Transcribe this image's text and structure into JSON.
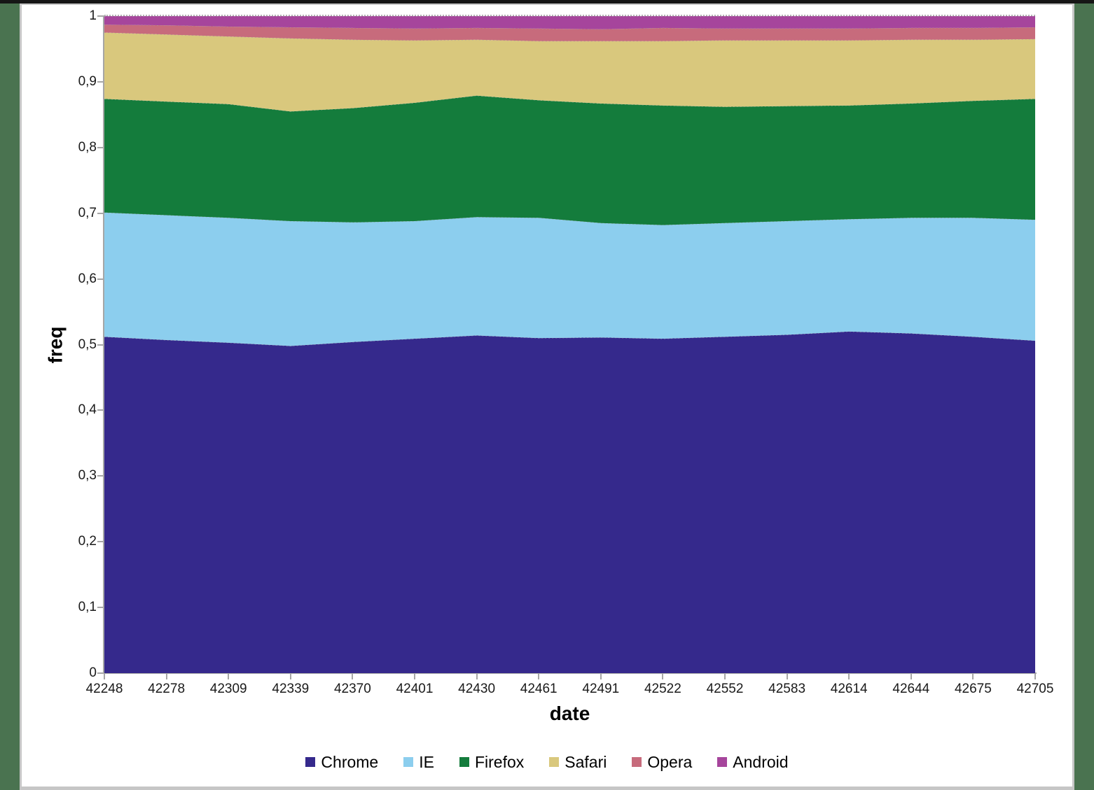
{
  "window": {
    "frame_color": "#4a7350",
    "frame_top_color": "#161616",
    "frame_inner_line_color": "#c6c6c6",
    "background": "#ffffff"
  },
  "chart_data": {
    "type": "area",
    "stacked": true,
    "normalized": true,
    "xlabel": "date",
    "ylabel": "freq",
    "ylim": [
      0,
      1
    ],
    "grid": "top-gridline-only",
    "legend_position": "bottom",
    "decimal_separator": ",",
    "x": [
      42248,
      42278,
      42309,
      42339,
      42370,
      42401,
      42430,
      42461,
      42491,
      42522,
      42552,
      42583,
      42614,
      42644,
      42675,
      42705
    ],
    "x_tick_labels": [
      "42248",
      "42278",
      "42309",
      "42339",
      "42370",
      "42401",
      "42430",
      "42461",
      "42491",
      "42522",
      "42552",
      "42583",
      "42614",
      "42644",
      "42675",
      "42705"
    ],
    "y_tick_labels": [
      "0",
      "0,1",
      "0,2",
      "0,3",
      "0,4",
      "0,5",
      "0,6",
      "0,7",
      "0,8",
      "0,9",
      "1"
    ],
    "y_tick_values": [
      0,
      0.1,
      0.2,
      0.3,
      0.4,
      0.5,
      0.6,
      0.7,
      0.8,
      0.9,
      1
    ],
    "series": [
      {
        "name": "Chrome",
        "color": "#35298c",
        "values": [
          0.512,
          0.507,
          0.503,
          0.498,
          0.504,
          0.509,
          0.514,
          0.51,
          0.511,
          0.509,
          0.512,
          0.515,
          0.52,
          0.517,
          0.512,
          0.506
        ]
      },
      {
        "name": "IE",
        "color": "#8cceee",
        "values": [
          0.189,
          0.19,
          0.19,
          0.19,
          0.182,
          0.179,
          0.18,
          0.183,
          0.174,
          0.173,
          0.173,
          0.173,
          0.171,
          0.176,
          0.181,
          0.184
        ]
      },
      {
        "name": "Firefox",
        "color": "#147c3c",
        "values": [
          0.173,
          0.173,
          0.173,
          0.167,
          0.174,
          0.18,
          0.185,
          0.179,
          0.182,
          0.182,
          0.177,
          0.175,
          0.173,
          0.174,
          0.178,
          0.184
        ]
      },
      {
        "name": "Safari",
        "color": "#d9c87d",
        "values": [
          0.101,
          0.102,
          0.103,
          0.111,
          0.104,
          0.095,
          0.085,
          0.09,
          0.095,
          0.098,
          0.101,
          0.1,
          0.099,
          0.097,
          0.093,
          0.091
        ]
      },
      {
        "name": "Opera",
        "color": "#c76b7c",
        "values": [
          0.012,
          0.014,
          0.015,
          0.017,
          0.018,
          0.018,
          0.018,
          0.019,
          0.018,
          0.02,
          0.018,
          0.018,
          0.018,
          0.018,
          0.018,
          0.018
        ]
      },
      {
        "name": "Android",
        "color": "#a6459c",
        "values": [
          0.013,
          0.014,
          0.016,
          0.017,
          0.018,
          0.019,
          0.018,
          0.019,
          0.02,
          0.018,
          0.019,
          0.019,
          0.019,
          0.018,
          0.018,
          0.017
        ]
      }
    ],
    "boundary_line_color": "#a6a6a6",
    "axis_color": "#a6a6a6"
  }
}
